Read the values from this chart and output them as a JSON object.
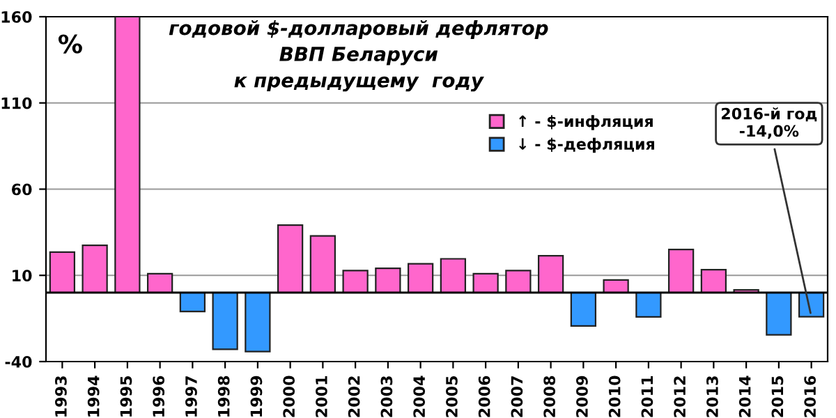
{
  "chart_data": {
    "type": "bar",
    "title": "годовой $-долларовый дефлятор\nВВП Беларуси\nк предыдущему  году",
    "ylabel": "%",
    "categories": [
      "1993",
      "1994",
      "1995",
      "1996",
      "1997",
      "1998",
      "1999",
      "2000",
      "2001",
      "2002",
      "2003",
      "2004",
      "2005",
      "2006",
      "2007",
      "2008",
      "2009",
      "2010",
      "2011",
      "2012",
      "2013",
      "2014",
      "2015",
      "2016"
    ],
    "series": [
      {
        "name": "↑ - $-инфляция",
        "color": "#ff66cc",
        "values": [
          23.5,
          27.4,
          160,
          11.0,
          null,
          null,
          null,
          39.1,
          32.9,
          12.8,
          14.1,
          16.7,
          19.6,
          11.0,
          12.8,
          21.4,
          null,
          7.3,
          null,
          25.0,
          13.3,
          1.6,
          null,
          null
        ]
      },
      {
        "name": "↓ - $-дефляция",
        "color": "#3399ff",
        "values": [
          null,
          null,
          null,
          null,
          -11.0,
          -32.9,
          -34.2,
          null,
          null,
          null,
          null,
          null,
          null,
          null,
          null,
          null,
          -19.3,
          null,
          -14.1,
          null,
          null,
          null,
          -24.5,
          -14.0
        ]
      }
    ],
    "stacked": true,
    "ylim": [
      -40,
      160
    ],
    "yticks": [
      -40,
      10,
      60,
      110,
      160
    ],
    "grid": "y",
    "legend": "right",
    "annotations": [
      {
        "text": "2016-й год\n-14,0%",
        "x": "2016",
        "y": -14.0
      }
    ]
  }
}
